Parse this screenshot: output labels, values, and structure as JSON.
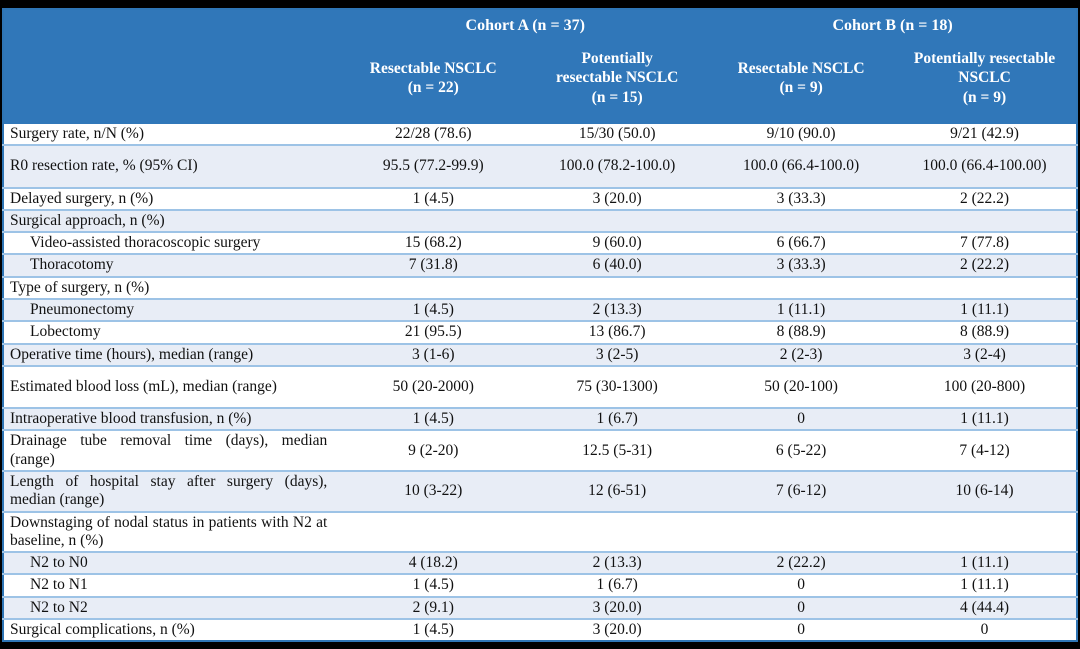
{
  "colors": {
    "header_blue": "#3077B9",
    "shaded_row_blue": "#E8EDF6",
    "separator_blue": "#9DC3E6",
    "outer_border_blue": "#2E75B5",
    "frame_black": "#000000",
    "header_text": "#ffffff",
    "body_text": "#111111"
  },
  "table": {
    "header": {
      "cohort_a": "Cohort A (n = 37)",
      "cohort_b": "Cohort B (n = 18)",
      "columns": [
        "Resectable NSCLC\n(n = 22)",
        "Potentially\nresectable NSCLC\n(n = 15)",
        "Resectable NSCLC\n(n = 9)",
        "Potentially resectable\nNSCLC\n(n = 9)"
      ]
    },
    "rows": [
      {
        "label": "Surgery rate, n/N (%)",
        "indent": false,
        "shaded": false,
        "tall": false,
        "values": [
          "22/28 (78.6)",
          "15/30 (50.0)",
          "9/10 (90.0)",
          "9/21 (42.9)"
        ]
      },
      {
        "label": "R0 resection rate, % (95% CI)",
        "indent": false,
        "shaded": true,
        "tall": true,
        "values": [
          "95.5 (77.2-99.9)",
          "100.0 (78.2-100.0)",
          "100.0 (66.4-100.0)",
          "100.0 (66.4-100.00)"
        ]
      },
      {
        "label": "Delayed surgery, n (%)",
        "indent": false,
        "shaded": false,
        "tall": false,
        "values": [
          "1 (4.5)",
          "3 (20.0)",
          "3 (33.3)",
          "2 (22.2)"
        ]
      },
      {
        "label": "Surgical approach, n (%)",
        "indent": false,
        "shaded": true,
        "tall": false,
        "values": [
          "",
          "",
          "",
          ""
        ]
      },
      {
        "label": "Video-assisted thoracoscopic surgery",
        "indent": true,
        "shaded": false,
        "tall": false,
        "values": [
          "15 (68.2)",
          "9 (60.0)",
          "6 (66.7)",
          "7 (77.8)"
        ]
      },
      {
        "label": "Thoracotomy",
        "indent": true,
        "shaded": true,
        "tall": false,
        "values": [
          "7 (31.8)",
          "6 (40.0)",
          "3 (33.3)",
          "2 (22.2)"
        ]
      },
      {
        "label": "Type of surgery, n (%)",
        "indent": false,
        "shaded": false,
        "tall": false,
        "values": [
          "",
          "",
          "",
          ""
        ]
      },
      {
        "label": "Pneumonectomy",
        "indent": true,
        "shaded": true,
        "tall": false,
        "values": [
          "1 (4.5)",
          "2 (13.3)",
          "1 (11.1)",
          "1 (11.1)"
        ]
      },
      {
        "label": "Lobectomy",
        "indent": true,
        "shaded": false,
        "tall": false,
        "values": [
          "21 (95.5)",
          "13 (86.7)",
          "8 (88.9)",
          "8 (88.9)"
        ]
      },
      {
        "label": "Operative time (hours), median (range)",
        "indent": false,
        "shaded": true,
        "tall": false,
        "values": [
          "3 (1-6)",
          "3 (2-5)",
          "2 (2-3)",
          "3 (2-4)"
        ]
      },
      {
        "label": "Estimated blood loss (mL), median (range)",
        "indent": false,
        "shaded": false,
        "tall": true,
        "values": [
          "50 (20-2000)",
          "75 (30-1300)",
          "50 (20-100)",
          "100 (20-800)"
        ]
      },
      {
        "label": "Intraoperative blood transfusion, n (%)",
        "indent": false,
        "shaded": true,
        "tall": false,
        "values": [
          "1 (4.5)",
          "1 (6.7)",
          "0",
          "1 (11.1)"
        ]
      },
      {
        "label": "Drainage tube removal time (days), median (range)",
        "indent": false,
        "shaded": false,
        "tall": false,
        "values": [
          "9 (2-20)",
          "12.5 (5-31)",
          "6 (5-22)",
          "7 (4-12)"
        ]
      },
      {
        "label": "Length of hospital stay after surgery (days), median (range)",
        "indent": false,
        "shaded": true,
        "tall": false,
        "values": [
          "10 (3-22)",
          "12 (6-51)",
          "7 (6-12)",
          "10 (6-14)"
        ]
      },
      {
        "label": "Downstaging of nodal status in patients with N2 at baseline, n (%)",
        "indent": false,
        "shaded": false,
        "tall": false,
        "values": [
          "",
          "",
          "",
          ""
        ]
      },
      {
        "label": "N2 to N0",
        "indent": true,
        "shaded": true,
        "tall": false,
        "values": [
          "4 (18.2)",
          "2 (13.3)",
          "2 (22.2)",
          "1 (11.1)"
        ]
      },
      {
        "label": "N2 to N1",
        "indent": true,
        "shaded": false,
        "tall": false,
        "values": [
          "1 (4.5)",
          "1 (6.7)",
          "0",
          "1 (11.1)"
        ]
      },
      {
        "label": "N2 to N2",
        "indent": true,
        "shaded": true,
        "tall": false,
        "values": [
          "2 (9.1)",
          "3 (20.0)",
          "0",
          "4 (44.4)"
        ]
      },
      {
        "label": "Surgical complications, n (%)",
        "indent": false,
        "shaded": false,
        "tall": false,
        "values": [
          "1 (4.5)",
          "3 (20.0)",
          "0",
          "0"
        ]
      }
    ]
  }
}
